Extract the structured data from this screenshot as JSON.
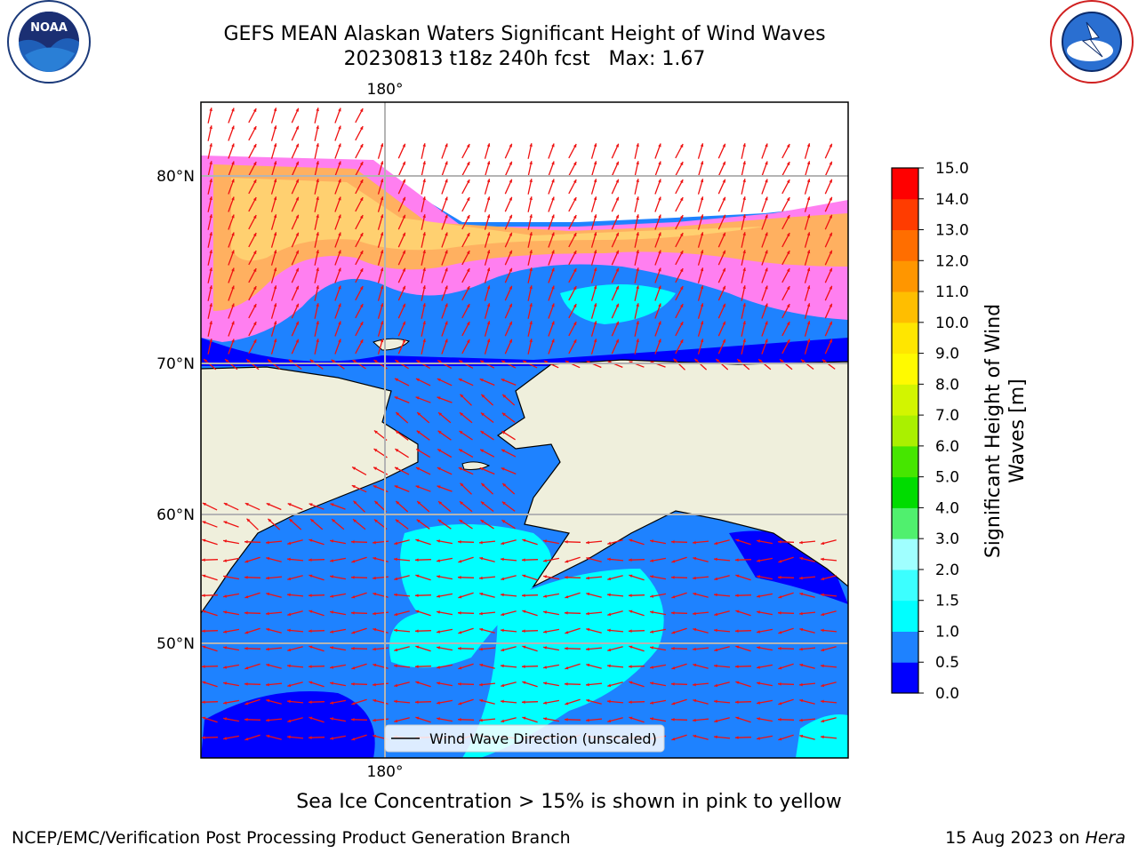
{
  "header": {
    "title_line1": "GEFS MEAN Alaskan Waters Significant Height of Wind Waves",
    "title_line2": "20230813 t18z 240h fcst   Max: 1.67"
  },
  "logos": {
    "left": {
      "name": "NOAA",
      "ring_text": "NATIONAL OCEANIC AND ATMOSPHERIC ADMINISTRATION · U.S. DEPARTMENT OF COMMERCE"
    },
    "right": {
      "ring_text": "NATIONAL WEATHER SERVICE"
    }
  },
  "map": {
    "lon_label_top": "180°",
    "lon_label_bottom": "180°",
    "lat_labels": [
      "80°N",
      "70°N",
      "60°N",
      "50°N"
    ],
    "legend_text": "Wind Wave Direction (unscaled)"
  },
  "colorbar": {
    "label_line1": "Significant Height of Wind",
    "label_line2": "Waves [m]",
    "ticks": [
      "0.0",
      "0.5",
      "1.0",
      "1.5",
      "2.0",
      "3.0",
      "4.0",
      "5.0",
      "6.0",
      "7.0",
      "8.0",
      "9.0",
      "10.0",
      "11.0",
      "12.0",
      "13.0",
      "14.0",
      "15.0"
    ],
    "colors": [
      "#0000ff",
      "#1e82ff",
      "#00ffff",
      "#3cffff",
      "#a0ffff",
      "#50f06e",
      "#00dc00",
      "#46e600",
      "#aaf000",
      "#d2f500",
      "#fffa00",
      "#ffe600",
      "#ffbe00",
      "#ff9600",
      "#ff6e00",
      "#ff3c00",
      "#ff0000"
    ]
  },
  "footer": {
    "note": "Sea Ice Concentration > 15% is shown in pink to yellow",
    "left": "NCEP/EMC/Verification Post Processing Product Generation Branch",
    "right_date": "15 Aug 2023 on ",
    "right_host": "Hera"
  }
}
